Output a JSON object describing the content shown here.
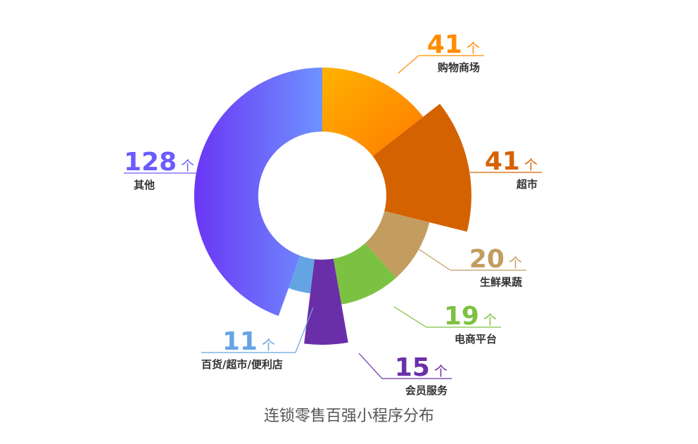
{
  "chart_data": {
    "type": "pie",
    "subtype": "rose-donut",
    "title": "连锁零售百强小程序分布",
    "unit": "个",
    "slices": [
      {
        "label": "购物商场",
        "value": 41,
        "color": "#ff8c00",
        "gradient": [
          "#ffb300",
          "#ff7a00"
        ]
      },
      {
        "label": "超市",
        "value": 41,
        "color": "#d56200"
      },
      {
        "label": "生鲜果蔬",
        "value": 20,
        "color": "#c29d5f"
      },
      {
        "label": "电商平台",
        "value": 19,
        "color": "#7cc242"
      },
      {
        "label": "会员服务",
        "value": 15,
        "color": "#6a2fa8"
      },
      {
        "label": "百货/超市/便利店",
        "value": 11,
        "color": "#65a4e3"
      },
      {
        "label": "其他",
        "value": 128,
        "color": "#6a5cff",
        "gradient": [
          "#6a36f5",
          "#6f93ff"
        ]
      }
    ]
  }
}
